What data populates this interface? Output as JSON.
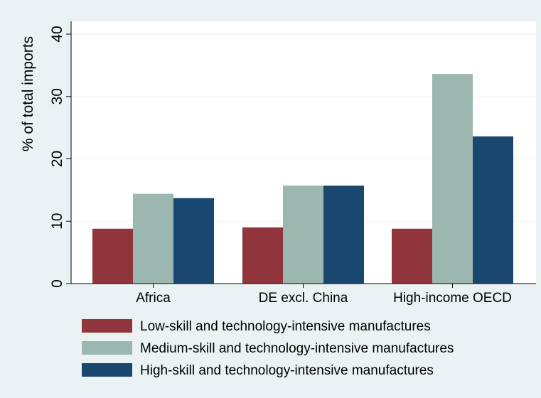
{
  "chart_data": {
    "type": "bar",
    "title": "",
    "xlabel": "",
    "ylabel": "% of total imports",
    "ylim": [
      0,
      40
    ],
    "yticks": [
      "0",
      "10",
      "20",
      "30",
      "40"
    ],
    "grid": true,
    "legend_position": "bottom",
    "categories": [
      "Africa",
      "DE excl. China",
      "High-income OECD"
    ],
    "series": [
      {
        "name": "Low-skill and technology-intensive manufactures",
        "color": "#90353b",
        "values": [
          8.8,
          9.0,
          8.8
        ]
      },
      {
        "name": "Medium-skill and technology-intensive manufactures",
        "color": "#9bb7b0",
        "values": [
          14.4,
          15.7,
          33.6
        ]
      },
      {
        "name": "High-skill and technology-intensive manufactures",
        "color": "#1a476f",
        "values": [
          13.7,
          15.7,
          23.6
        ]
      }
    ]
  }
}
